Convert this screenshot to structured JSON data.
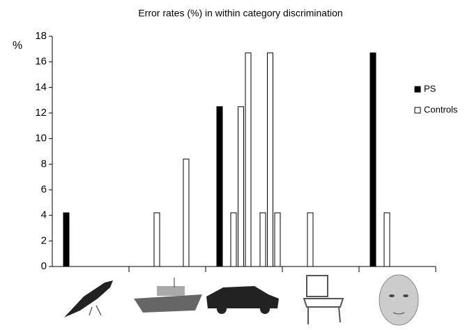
{
  "chart_data": {
    "type": "bar",
    "title": "Error rates (%) in within category discrimination",
    "y_label": "%",
    "categories": [
      null,
      null,
      null,
      null,
      null
    ],
    "series": [
      {
        "name": "PS",
        "color": "#000000",
        "values": [
          4.2,
          0,
          12.5,
          0,
          16.7
        ]
      },
      {
        "name": "Controls",
        "color": "#ffffff",
        "values": [
          [
            0,
            0,
            0,
            0,
            0,
            0,
            0
          ],
          [
            4.2,
            0,
            0,
            0,
            8.4,
            0,
            0
          ],
          [
            4.2,
            12.5,
            16.7,
            0,
            4.2,
            16.7,
            4.2
          ],
          [
            4.2,
            0,
            0,
            0,
            0,
            0,
            0
          ],
          [
            4.2,
            0,
            0,
            0,
            0,
            0,
            0
          ]
        ]
      }
    ],
    "ylim": [
      0,
      18
    ],
    "yticks": [
      0,
      2,
      4,
      6,
      8,
      10,
      12,
      14,
      16,
      18
    ],
    "grid": false,
    "legend": "right"
  }
}
